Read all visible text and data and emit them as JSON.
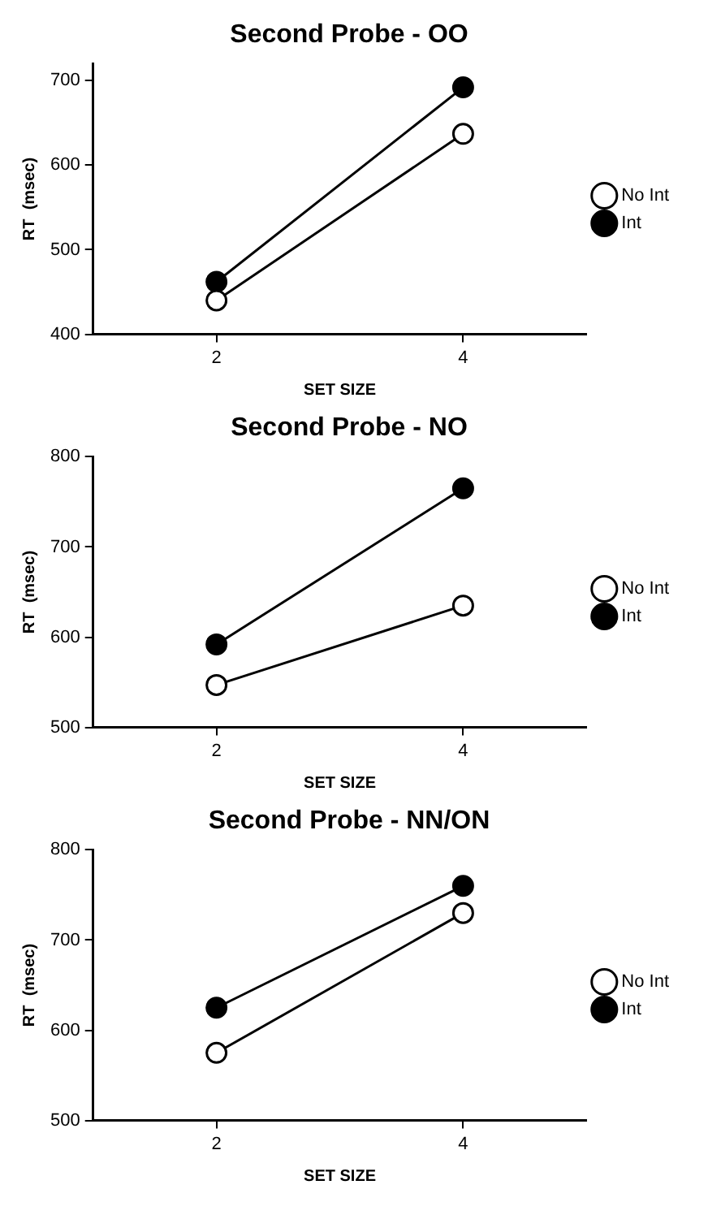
{
  "chart_data": [
    {
      "type": "line",
      "title": "Second Probe - OO",
      "xlabel": "SET SIZE",
      "ylabel": "RT  (msec)",
      "categories": [
        "2",
        "4"
      ],
      "ylim": [
        400,
        720
      ],
      "yticks": [
        400,
        500,
        600,
        700
      ],
      "legend": "right",
      "marker": "circle",
      "grid": false,
      "series": [
        {
          "name": "No Int",
          "color": "#000000",
          "values": [
            440,
            637
          ]
        },
        {
          "name": "Int",
          "color": "#000000",
          "values": [
            462,
            692
          ]
        }
      ]
    },
    {
      "type": "line",
      "title": "Second Probe - NO",
      "xlabel": "SET SIZE",
      "ylabel": "RT  (msec)",
      "categories": [
        "2",
        "4"
      ],
      "ylim": [
        500,
        800
      ],
      "yticks": [
        500,
        600,
        700,
        800
      ],
      "legend": "right",
      "marker": "circle",
      "grid": false,
      "series": [
        {
          "name": "No Int",
          "color": "#000000",
          "values": [
            547,
            635
          ]
        },
        {
          "name": "Int",
          "color": "#000000",
          "values": [
            592,
            765
          ]
        }
      ]
    },
    {
      "type": "line",
      "title": "Second Probe - NN/ON",
      "xlabel": "SET SIZE",
      "ylabel": "RT  (msec)",
      "categories": [
        "2",
        "4"
      ],
      "ylim": [
        500,
        800
      ],
      "yticks": [
        500,
        600,
        700,
        800
      ],
      "legend": "right",
      "marker": "circle",
      "grid": false,
      "series": [
        {
          "name": "No Int",
          "color": "#000000",
          "values": [
            575,
            730
          ]
        },
        {
          "name": "Int",
          "color": "#000000",
          "values": [
            625,
            760
          ]
        }
      ]
    }
  ]
}
